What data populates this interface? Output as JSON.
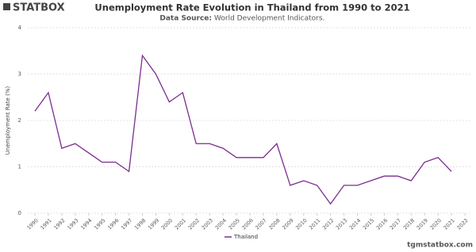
{
  "logo": "STATBOX",
  "footer": "tgmstatbox.com",
  "chart_data": {
    "type": "line",
    "title": "Unemployment Rate Evolution in Thailand from 1990 to 2021",
    "subtitle_label": "Data Source:",
    "subtitle": "World Development Indicators.",
    "y_label": "Unemployment Rate (%)",
    "x": [
      1990,
      1991,
      1992,
      1993,
      1994,
      1995,
      1996,
      1997,
      1998,
      1999,
      2000,
      2001,
      2002,
      2003,
      2004,
      2005,
      2006,
      2007,
      2008,
      2009,
      2010,
      2011,
      2012,
      2013,
      2014,
      2015,
      2016,
      2017,
      2018,
      2019,
      2020,
      2021
    ],
    "series": [
      {
        "name": "Thailand",
        "color": "#7b2d8e",
        "values": [
          2.2,
          2.6,
          1.4,
          1.5,
          1.3,
          1.1,
          1.1,
          0.9,
          3.4,
          3.0,
          2.4,
          2.6,
          1.5,
          1.5,
          1.4,
          1.2,
          1.2,
          1.2,
          1.5,
          0.6,
          0.7,
          0.6,
          0.2,
          0.6,
          0.6,
          0.7,
          0.8,
          0.8,
          0.7,
          1.1,
          1.2,
          0.9
        ]
      }
    ],
    "xlim": [
      1990,
      2022
    ],
    "xticks": [
      1990,
      1991,
      1992,
      1993,
      1994,
      1995,
      1996,
      1997,
      1998,
      1999,
      2000,
      2001,
      2002,
      2003,
      2004,
      2005,
      2006,
      2007,
      2008,
      2009,
      2010,
      2011,
      2012,
      2013,
      2014,
      2015,
      2016,
      2017,
      2018,
      2019,
      2020,
      2021,
      2022
    ],
    "ylim": [
      0,
      4
    ],
    "yticks": [
      0,
      1,
      2,
      3,
      4
    ],
    "grid": true
  }
}
